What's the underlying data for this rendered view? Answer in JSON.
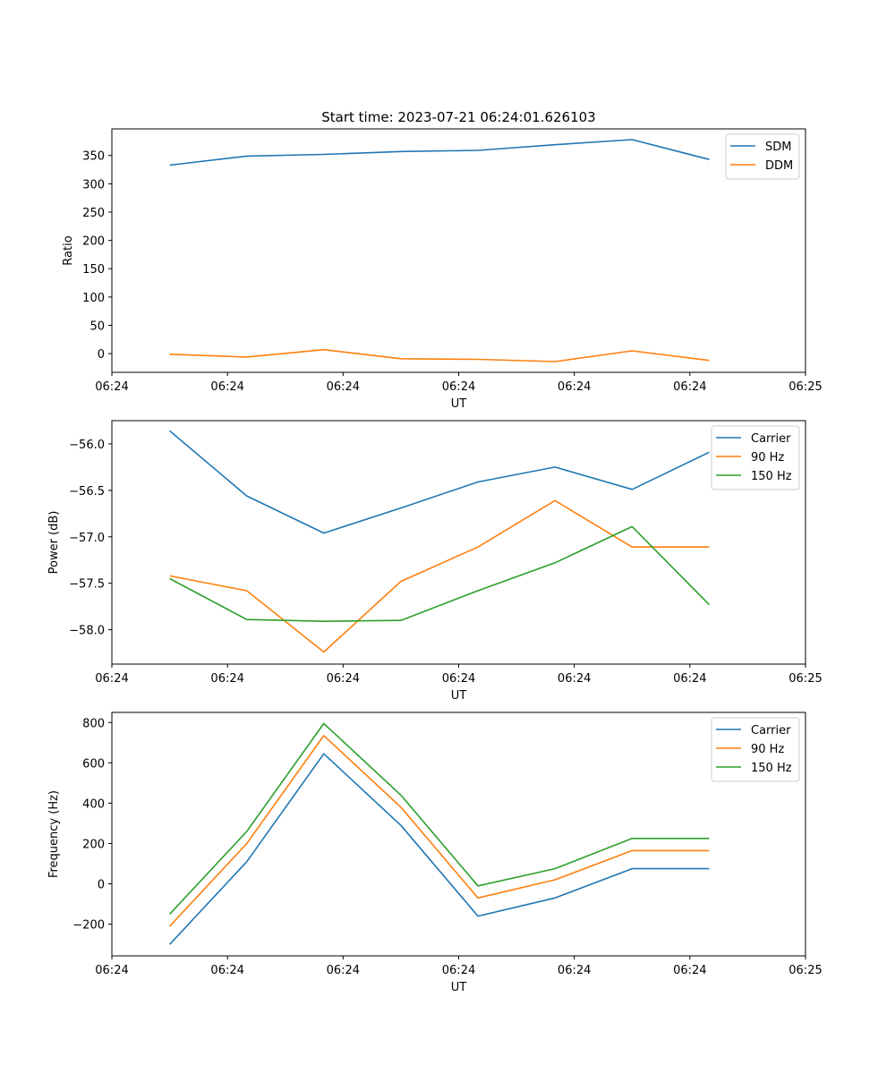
{
  "title": "Start time: 2023-07-21 06:24:01.626103",
  "chart_data": [
    {
      "type": "line",
      "title": "Start time: 2023-07-21 06:24:01.626103",
      "xlabel": "UT",
      "ylabel": "Ratio",
      "x": [
        0,
        1,
        2,
        3,
        4,
        5,
        6,
        7
      ],
      "xlim": [
        -0.75,
        8.25
      ],
      "xtick_positions": [
        -0.75,
        0.75,
        2.25,
        3.75,
        5.25,
        6.75,
        8.25
      ],
      "xtick_labels": [
        "06:24",
        "06:24",
        "06:24",
        "06:24",
        "06:24",
        "06:24",
        "06:25"
      ],
      "ylim": [
        -33,
        397
      ],
      "yticks": [
        0,
        50,
        100,
        150,
        200,
        250,
        300,
        350
      ],
      "legend_position": "top-right",
      "series": [
        {
          "name": "SDM",
          "color": "#1f77b4",
          "values": [
            333,
            349,
            352,
            357,
            359,
            369,
            378,
            343
          ]
        },
        {
          "name": "DDM",
          "color": "#ff7f0e",
          "values": [
            -1,
            -6,
            7,
            -9,
            -10,
            -14,
            5,
            -12
          ]
        }
      ]
    },
    {
      "type": "line",
      "title": "",
      "xlabel": "UT",
      "ylabel": "Power (dB)",
      "x": [
        0,
        1,
        2,
        3,
        4,
        5,
        6,
        7
      ],
      "xlim": [
        -0.75,
        8.25
      ],
      "xtick_positions": [
        -0.75,
        0.75,
        2.25,
        3.75,
        5.25,
        6.75,
        8.25
      ],
      "xtick_labels": [
        "06:24",
        "06:24",
        "06:24",
        "06:24",
        "06:24",
        "06:24",
        "06:25"
      ],
      "ylim": [
        -58.37,
        -55.75
      ],
      "yticks": [
        -58.0,
        -57.5,
        -57.0,
        -56.5,
        -56.0
      ],
      "ytick_labels": [
        "−58.0",
        "−57.5",
        "−57.0",
        "−56.5",
        "−56.0"
      ],
      "legend_position": "top-right",
      "series": [
        {
          "name": "Carrier",
          "color": "#1f77b4",
          "values": [
            -55.86,
            -56.56,
            -56.96,
            -56.69,
            -56.41,
            -56.25,
            -56.49,
            -56.09
          ]
        },
        {
          "name": "90 Hz",
          "color": "#ff7f0e",
          "values": [
            -57.42,
            -57.58,
            -58.24,
            -57.48,
            -57.11,
            -56.61,
            -57.11,
            -57.11
          ]
        },
        {
          "name": "150 Hz",
          "color": "#2ca02c",
          "values": [
            -57.45,
            -57.89,
            -57.91,
            -57.9,
            -57.58,
            -57.28,
            -56.89,
            -57.73
          ]
        }
      ]
    },
    {
      "type": "line",
      "title": "",
      "xlabel": "UT",
      "ylabel": "Frequency (Hz)",
      "x": [
        0,
        1,
        2,
        3,
        4,
        5,
        6,
        7
      ],
      "xlim": [
        -0.75,
        8.25
      ],
      "xtick_positions": [
        -0.75,
        0.75,
        2.25,
        3.75,
        5.25,
        6.75,
        8.25
      ],
      "xtick_labels": [
        "06:24",
        "06:24",
        "06:24",
        "06:24",
        "06:24",
        "06:24",
        "06:25"
      ],
      "ylim": [
        -357,
        850
      ],
      "yticks": [
        -200,
        0,
        200,
        400,
        600,
        800
      ],
      "ytick_labels": [
        "−200",
        "0",
        "200",
        "400",
        "600",
        "800"
      ],
      "legend_position": "top-right",
      "series": [
        {
          "name": "Carrier",
          "color": "#1f77b4",
          "values": [
            -300,
            110,
            645,
            290,
            -160,
            -70,
            75,
            75
          ]
        },
        {
          "name": "90 Hz",
          "color": "#ff7f0e",
          "values": [
            -210,
            200,
            735,
            380,
            -70,
            20,
            165,
            165
          ]
        },
        {
          "name": "150 Hz",
          "color": "#2ca02c",
          "values": [
            -150,
            260,
            795,
            440,
            -10,
            75,
            225,
            225
          ]
        }
      ]
    }
  ]
}
